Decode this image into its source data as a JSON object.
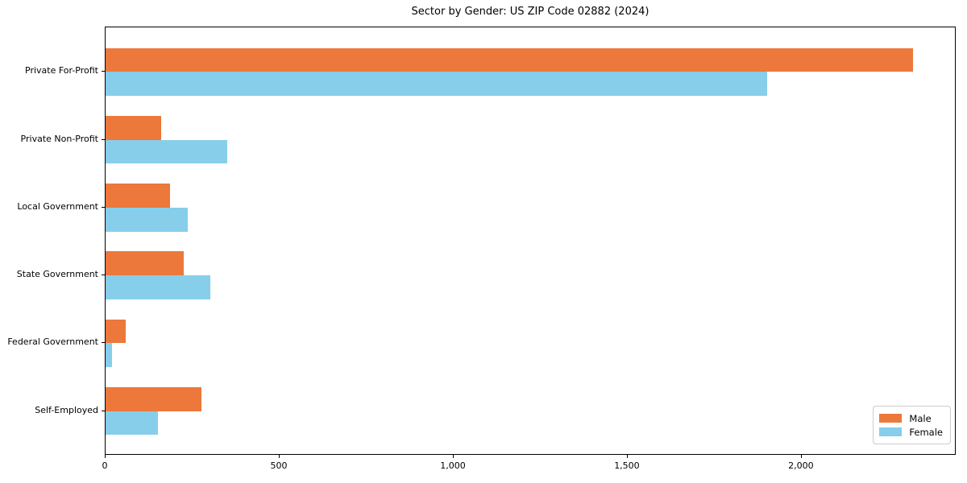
{
  "figure": {
    "title": "Sector by Gender: US ZIP Code 02882 (2024)"
  },
  "chart_data": {
    "type": "bar",
    "orientation": "horizontal",
    "title": "Sector by Gender: US ZIP Code 02882 (2024)",
    "categories": [
      "Private For-Profit",
      "Private Non-Profit",
      "Local Government",
      "State Government",
      "Federal Government",
      "Self-Employed"
    ],
    "series": [
      {
        "name": "Male",
        "color": "#EC783B",
        "values": [
          2320,
          160,
          185,
          225,
          58,
          275
        ]
      },
      {
        "name": "Female",
        "color": "#87CEEB",
        "values": [
          1900,
          350,
          235,
          300,
          18,
          150
        ]
      }
    ],
    "xlabel": "",
    "ylabel": "",
    "xlim": [
      0,
      2440
    ],
    "xticks": [
      0,
      500,
      1000,
      1500,
      2000
    ],
    "xtick_labels": [
      "0",
      "500",
      "1,000",
      "1,500",
      "2,000"
    ],
    "grid": false,
    "background": "#ffffff",
    "frame": true,
    "legend": {
      "position": "lower right",
      "entries": [
        "Male",
        "Female"
      ]
    }
  }
}
